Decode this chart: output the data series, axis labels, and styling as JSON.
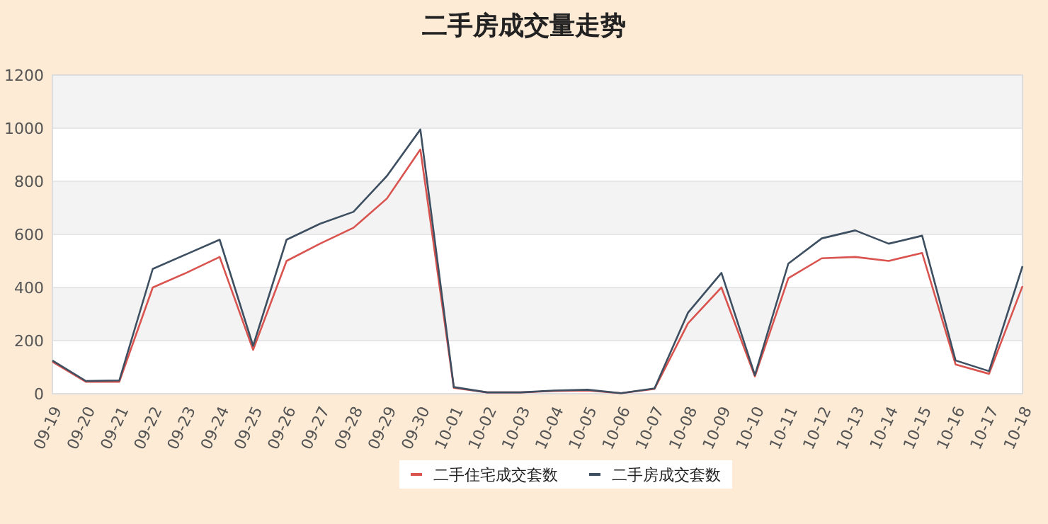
{
  "chart_data": {
    "type": "line",
    "title": "二手房成交量走势",
    "categories": [
      "09-19",
      "09-20",
      "09-21",
      "09-22",
      "09-23",
      "09-24",
      "09-25",
      "09-26",
      "09-27",
      "09-28",
      "09-29",
      "09-30",
      "10-01",
      "10-02",
      "10-03",
      "10-04",
      "10-05",
      "10-06",
      "10-07",
      "10-08",
      "10-09",
      "10-10",
      "10-11",
      "10-12",
      "10-13",
      "10-14",
      "10-15",
      "10-16",
      "10-17",
      "10-18"
    ],
    "series": [
      {
        "name": "二手住宅成交套数",
        "color": "#d9534f",
        "values": [
          120,
          45,
          45,
          400,
          455,
          515,
          165,
          500,
          565,
          625,
          735,
          920,
          22,
          5,
          5,
          10,
          12,
          2,
          18,
          265,
          400,
          65,
          435,
          510,
          515,
          500,
          530,
          110,
          75,
          405
        ]
      },
      {
        "name": "二手房成交套数",
        "color": "#3d4f60",
        "values": [
          125,
          48,
          50,
          470,
          525,
          580,
          180,
          580,
          640,
          685,
          820,
          995,
          25,
          5,
          5,
          12,
          15,
          2,
          20,
          305,
          455,
          70,
          490,
          585,
          615,
          565,
          595,
          125,
          85,
          480
        ]
      }
    ],
    "ylim": [
      0,
      1200
    ],
    "yticks": [
      0,
      200,
      400,
      600,
      800,
      1000,
      1200
    ],
    "grid": "y",
    "bands": [
      {
        "axis": "y",
        "from": 200,
        "to": 400,
        "color": "#f3f3f3"
      },
      {
        "axis": "y",
        "from": 600,
        "to": 800,
        "color": "#f3f3f3"
      },
      {
        "axis": "y",
        "from": 1000,
        "to": 1200,
        "color": "#f3f3f3"
      }
    ],
    "legend": "bottom",
    "marker": "none",
    "line_style": "solid"
  }
}
